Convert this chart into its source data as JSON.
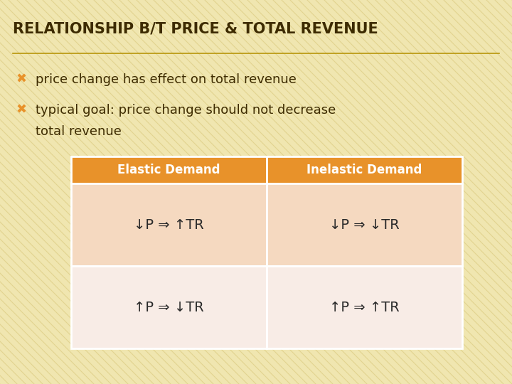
{
  "title": "RELATIONSHIP B/T PRICE & TOTAL REVENUE",
  "title_color": "#3d2b00",
  "title_fontsize": 15,
  "background_color": "#f0e6b0",
  "stripe_color": "#d4c070",
  "bullet_color": "#e8922a",
  "bullet_text_color": "#3d2b00",
  "bullet1": "price change has effect on total revenue",
  "bullet2_line1": "typical goal: price change should not decrease",
  "bullet2_line2": "total revenue",
  "bullet_fontsize": 13,
  "table_header_bg": "#e8922a",
  "table_header_text": "#ffffff",
  "table_row1_bg": "#f5d9c0",
  "table_row2_bg": "#f8ece6",
  "table_text_color": "#2a2a2a",
  "table_header_fontsize": 12,
  "table_cell_fontsize": 14,
  "col1_header": "Elastic Demand",
  "col2_header": "Inelastic Demand",
  "row1_col1": "↓P ⇒ ↑TR",
  "row1_col2": "↓P ⇒ ↓TR",
  "row2_col1": "↑P ⇒ ↓TR",
  "row2_col2": "↑P ⇒ ↑TR"
}
